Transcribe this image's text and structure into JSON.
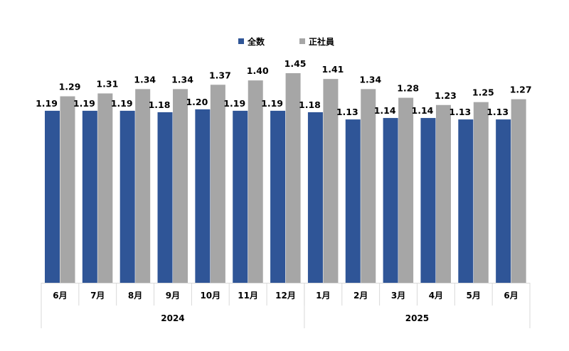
{
  "chart_data": {
    "type": "bar",
    "categories": [
      "6月",
      "7月",
      "8月",
      "9月",
      "10月",
      "11月",
      "12月",
      "1月",
      "2月",
      "3月",
      "4月",
      "5月",
      "6月"
    ],
    "groups": [
      {
        "label": "2024",
        "count": 7
      },
      {
        "label": "2025",
        "count": 6
      }
    ],
    "series": [
      {
        "name": "全数",
        "color": "#2F5597",
        "values": [
          1.19,
          1.19,
          1.19,
          1.18,
          1.2,
          1.19,
          1.19,
          1.18,
          1.13,
          1.14,
          1.14,
          1.13,
          1.13
        ],
        "labels": [
          "1.19",
          "1.19",
          "1.19",
          "1.18",
          "1.20",
          "1.19",
          "1.19",
          "1.18",
          "1.13",
          "1.14",
          "1.14",
          "1.13",
          "1.13"
        ]
      },
      {
        "name": "正社員",
        "color": "#A6A6A6",
        "values": [
          1.29,
          1.31,
          1.34,
          1.34,
          1.37,
          1.4,
          1.45,
          1.41,
          1.34,
          1.28,
          1.23,
          1.25,
          1.27
        ],
        "labels": [
          "1.29",
          "1.31",
          "1.34",
          "1.34",
          "1.37",
          "1.40",
          "1.45",
          "1.41",
          "1.34",
          "1.28",
          "1.23",
          "1.25",
          "1.27"
        ]
      }
    ],
    "ylim": [
      0,
      1.45
    ],
    "legend_position": "top-center",
    "grid": false
  }
}
